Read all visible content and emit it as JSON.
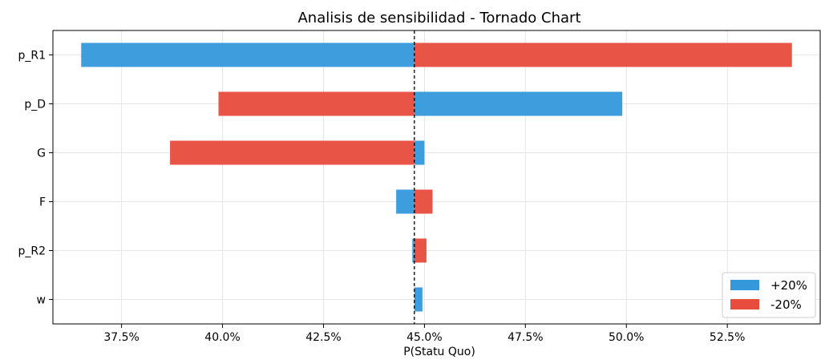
{
  "chart_data": {
    "type": "bar",
    "orientation": "horizontal",
    "title": "Analisis de sensibilidad - Tornado Chart",
    "xlabel": "P(Statu Quo)",
    "ylabel": "",
    "baseline": 44.75,
    "xlim": [
      35.8,
      54.8
    ],
    "xticks": [
      37.5,
      40.0,
      42.5,
      45.0,
      47.5,
      50.0,
      52.5
    ],
    "xtick_labels": [
      "37.5%",
      "40.0%",
      "42.5%",
      "45.0%",
      "47.5%",
      "50.0%",
      "52.5%"
    ],
    "categories": [
      "p_R1",
      "p_D",
      "G",
      "F",
      "p_R2",
      "w"
    ],
    "series": [
      {
        "name": "+20%",
        "color": "#3498db",
        "values": [
          36.5,
          49.9,
          45.0,
          44.3,
          44.7,
          44.95
        ]
      },
      {
        "name": "-20%",
        "color": "#e74c3c",
        "values": [
          54.1,
          39.9,
          38.7,
          45.2,
          45.05,
          44.75
        ]
      }
    ],
    "grid": true,
    "legend_position": "lower-right"
  }
}
